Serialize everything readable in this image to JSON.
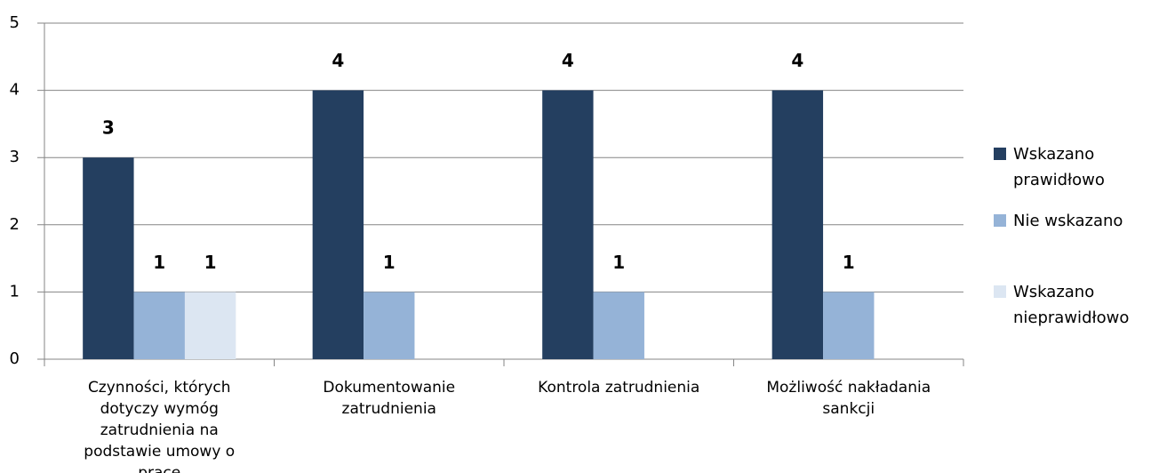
{
  "chart_data": {
    "type": "bar",
    "categories": [
      "Czynności, których dotyczy wymóg zatrudnienia na podstawie umowy o pracę",
      "Dokumentowanie zatrudnienia",
      "Kontrola zatrudnienia",
      "Możliwość nakładania sankcji"
    ],
    "series": [
      {
        "name": "Wskazano prawidłowo",
        "color": "#243f60",
        "values": [
          3,
          4,
          4,
          4
        ]
      },
      {
        "name": "Nie wskazano",
        "color": "#95b3d7",
        "values": [
          1,
          1,
          1,
          1
        ]
      },
      {
        "name": "Wskazano nieprawidłowo",
        "color": "#dce6f2",
        "values": [
          1,
          null,
          null,
          null
        ]
      }
    ],
    "ylim": [
      0,
      5
    ],
    "yticks": [
      0,
      1,
      2,
      3,
      4,
      5
    ],
    "grid": true,
    "legend": "right"
  }
}
